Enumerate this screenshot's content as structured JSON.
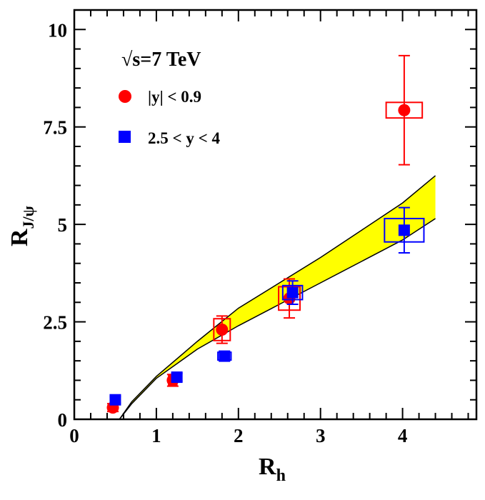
{
  "chart_data": {
    "type": "scatter",
    "energy_label": "√s=7 TeV",
    "xlabel": "R",
    "xlabel_sub": "h",
    "ylabel": "R",
    "ylabel_sub": "J/ψ",
    "xlim": [
      0,
      4.9
    ],
    "ylim": [
      0,
      10.5
    ],
    "x_ticks": [
      {
        "value": 0,
        "label": "0"
      },
      {
        "value": 1,
        "label": "1"
      },
      {
        "value": 2,
        "label": "2"
      },
      {
        "value": 3,
        "label": "3"
      },
      {
        "value": 4,
        "label": "4"
      }
    ],
    "y_ticks": [
      {
        "value": 0,
        "label": "0"
      },
      {
        "value": 2.5,
        "label": "2.5"
      },
      {
        "value": 5,
        "label": "5"
      },
      {
        "value": 7.5,
        "label": "7.5"
      },
      {
        "value": 10,
        "label": "10"
      }
    ],
    "grid": false,
    "legend_position": "top-left",
    "series": [
      {
        "name": "|y| < 0.9",
        "color": "#ff0000",
        "marker": "circle",
        "points": [
          {
            "x": 0.47,
            "y": 0.3,
            "yerr": 0.1,
            "sysx": 0.04,
            "sysy": 0.1
          },
          {
            "x": 1.2,
            "y": 1.0,
            "yerr": 0.15,
            "sysx": 0.05,
            "sysy": 0.12
          },
          {
            "x": 1.8,
            "y": 2.3,
            "yerr": 0.35,
            "sysx": 0.1,
            "sysy": 0.28
          },
          {
            "x": 2.62,
            "y": 3.1,
            "yerr": 0.5,
            "sysx": 0.13,
            "sysy": 0.3
          },
          {
            "x": 4.02,
            "y": 7.93,
            "yerr": 1.4,
            "sysx": 0.22,
            "sysy": 0.2
          }
        ]
      },
      {
        "name": "2.5 < y < 4",
        "color": "#0000ff",
        "marker": "square",
        "points": [
          {
            "x": 0.5,
            "y": 0.5,
            "yerr": 0.08,
            "sysx": 0.04,
            "sysy": 0.06
          },
          {
            "x": 1.25,
            "y": 1.08,
            "yerr": 0.1,
            "sysx": 0.06,
            "sysy": 0.1
          },
          {
            "x": 1.83,
            "y": 1.62,
            "yerr": 0.12,
            "sysx": 0.08,
            "sysy": 0.1
          },
          {
            "x": 2.66,
            "y": 3.25,
            "yerr": 0.3,
            "sysx": 0.12,
            "sysy": 0.18
          },
          {
            "x": 4.02,
            "y": 4.85,
            "yerr": 0.58,
            "sysx": 0.24,
            "sysy": 0.3
          }
        ]
      }
    ],
    "band": {
      "color": "#ffff00",
      "lower": [
        [
          0.55,
          0.0
        ],
        [
          0.7,
          0.4
        ],
        [
          1.0,
          1.05
        ],
        [
          1.5,
          1.8
        ],
        [
          2.0,
          2.4
        ],
        [
          2.5,
          2.95
        ],
        [
          3.0,
          3.5
        ],
        [
          3.5,
          4.05
        ],
        [
          4.0,
          4.6
        ],
        [
          4.4,
          5.15
        ]
      ],
      "upper": [
        [
          0.55,
          0.0
        ],
        [
          0.7,
          0.45
        ],
        [
          1.0,
          1.1
        ],
        [
          1.5,
          2.0
        ],
        [
          2.0,
          2.85
        ],
        [
          2.5,
          3.5
        ],
        [
          3.0,
          4.15
        ],
        [
          3.5,
          4.85
        ],
        [
          4.0,
          5.55
        ],
        [
          4.4,
          6.25
        ]
      ]
    }
  }
}
